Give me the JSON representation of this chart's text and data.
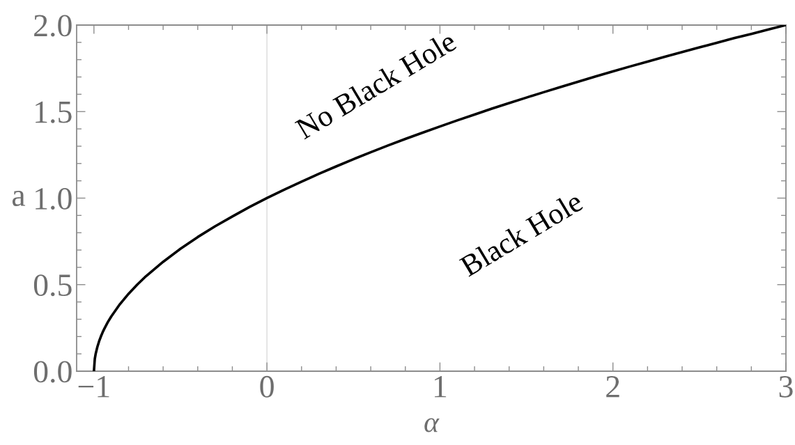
{
  "chart_data": {
    "type": "line",
    "xlabel": "α",
    "ylabel": "a",
    "x": [
      -1,
      -0.995,
      -0.99,
      -0.98,
      -0.97,
      -0.96,
      -0.95,
      -0.94,
      -0.92,
      -0.9,
      -0.85,
      -0.8,
      -0.75,
      -0.7,
      -0.6,
      -0.5,
      -0.4,
      -0.3,
      -0.2,
      -0.1,
      0,
      0.1,
      0.2,
      0.3,
      0.4,
      0.5,
      0.6,
      0.7,
      0.8,
      0.9,
      1.0,
      1.1,
      1.2,
      1.3,
      1.4,
      1.5,
      1.6,
      1.7,
      1.8,
      1.9,
      2.0,
      2.1,
      2.2,
      2.3,
      2.4,
      2.5,
      2.6,
      2.7,
      2.8,
      2.9,
      3.0
    ],
    "series": [
      {
        "color": "#000000",
        "values": [
          0,
          0.071,
          0.1,
          0.141,
          0.173,
          0.2,
          0.224,
          0.245,
          0.283,
          0.316,
          0.387,
          0.447,
          0.5,
          0.548,
          0.632,
          0.707,
          0.775,
          0.837,
          0.894,
          0.949,
          1,
          1.049,
          1.095,
          1.14,
          1.183,
          1.225,
          1.265,
          1.304,
          1.342,
          1.378,
          1.414,
          1.449,
          1.483,
          1.517,
          1.549,
          1.581,
          1.612,
          1.643,
          1.673,
          1.703,
          1.732,
          1.761,
          1.789,
          1.817,
          1.844,
          1.871,
          1.897,
          1.924,
          1.949,
          1.975,
          2
        ]
      }
    ],
    "xlim": [
      -1.1,
      3
    ],
    "ylim": [
      0,
      2
    ],
    "xticks": [
      {
        "value": -1,
        "label": "−1"
      },
      {
        "value": -0.8,
        "label": null
      },
      {
        "value": -0.6,
        "label": null
      },
      {
        "value": -0.4,
        "label": null
      },
      {
        "value": -0.2,
        "label": null
      },
      0,
      {
        "value": 0.2,
        "label": null
      },
      {
        "value": 0.4,
        "label": null
      },
      {
        "value": 0.6,
        "label": null
      },
      {
        "value": 0.8,
        "label": null
      },
      1,
      {
        "value": 1.2,
        "label": null
      },
      {
        "value": 1.4,
        "label": null
      },
      {
        "value": 1.6,
        "label": null
      },
      {
        "value": 1.8,
        "label": null
      },
      2,
      {
        "value": 2.2,
        "label": null
      },
      {
        "value": 2.4,
        "label": null
      },
      {
        "value": 2.6,
        "label": null
      },
      {
        "value": 2.8,
        "label": null
      },
      3
    ],
    "yticks": [
      {
        "value": 0,
        "label": "0.0"
      },
      {
        "value": 0.1,
        "label": null
      },
      {
        "value": 0.2,
        "label": null
      },
      {
        "value": 0.3,
        "label": null
      },
      {
        "value": 0.4,
        "label": null
      },
      0.5,
      {
        "value": 0.6,
        "label": null
      },
      {
        "value": 0.7,
        "label": null
      },
      {
        "value": 0.8,
        "label": null
      },
      {
        "value": 0.9,
        "label": null
      },
      {
        "value": 1,
        "label": "1.0"
      },
      {
        "value": 1.1,
        "label": null
      },
      {
        "value": 1.2,
        "label": null
      },
      {
        "value": 1.3,
        "label": null
      },
      {
        "value": 1.4,
        "label": null
      },
      1.5,
      {
        "value": 1.6,
        "label": null
      },
      {
        "value": 1.7,
        "label": null
      },
      {
        "value": 1.8,
        "label": null
      },
      {
        "value": 1.9,
        "label": null
      },
      {
        "value": 2,
        "label": "2.0"
      }
    ],
    "ref_lines": [
      {
        "axis": "x",
        "value": 0,
        "color": "#dadada"
      }
    ],
    "annotations": [
      "No Black Hole",
      "Black Hole"
    ],
    "marker": "none",
    "line_style": "solid",
    "grid": false
  }
}
